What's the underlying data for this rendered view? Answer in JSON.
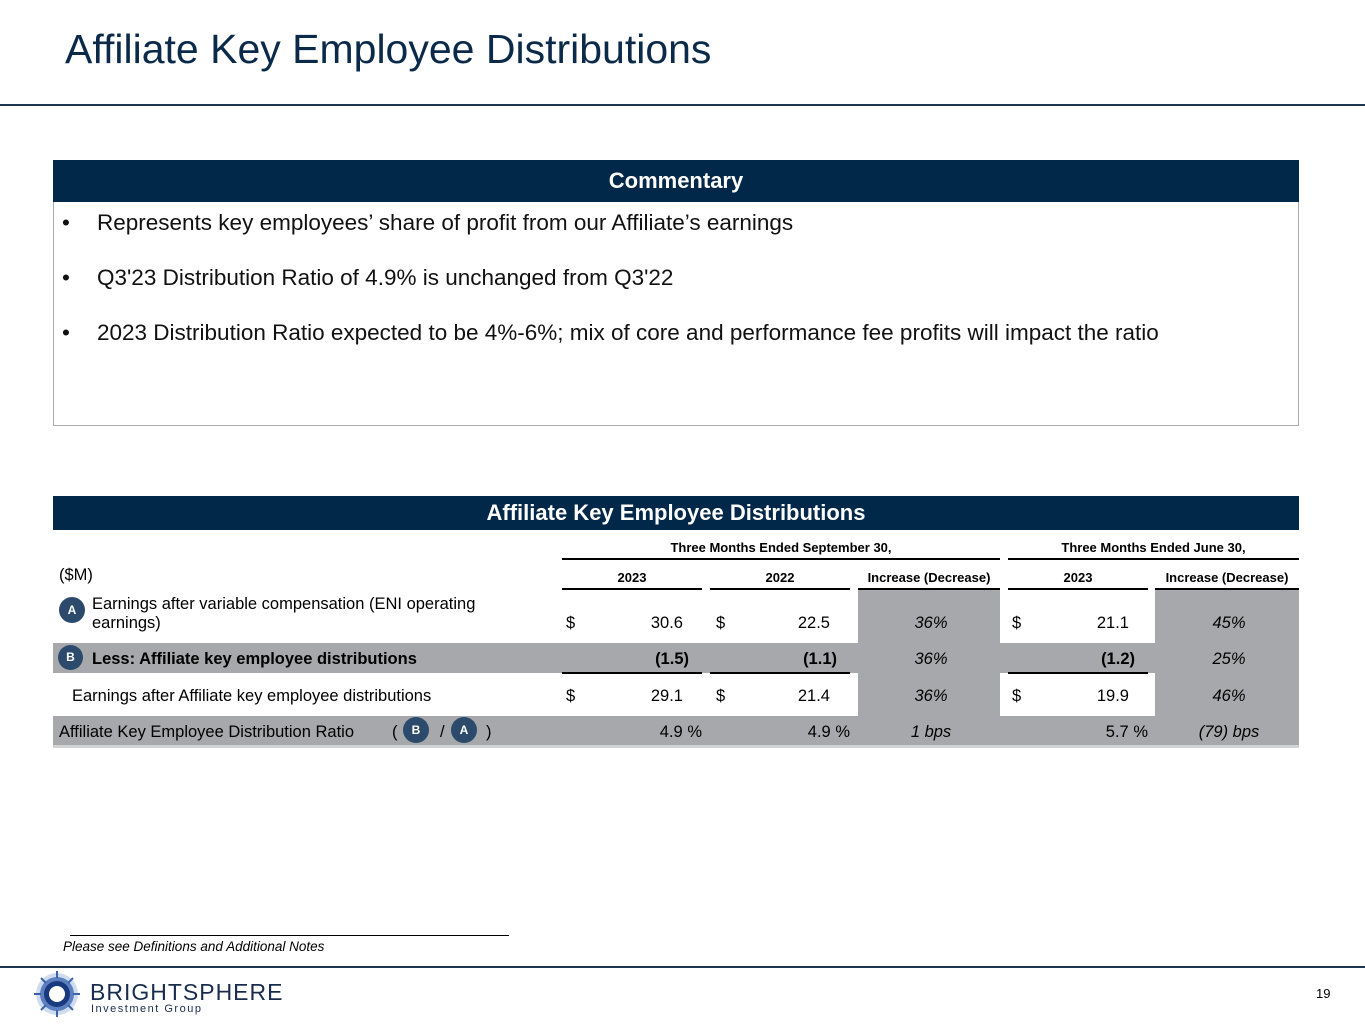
{
  "title": "Affiliate Key Employee Distributions",
  "commentary": {
    "header": "Commentary",
    "bullets": [
      "Represents key employees’ share of profit from our Affiliate’s earnings",
      "Q3'23 Distribution Ratio of 4.9% is unchanged from Q3'22",
      "2023 Distribution Ratio expected to be 4%-6%; mix of core and performance fee profits will impact the ratio"
    ],
    "bullet_char": "•"
  },
  "table": {
    "header": "Affiliate Key Employee Distributions",
    "units": "($M)",
    "period1": "Three Months Ended September 30,",
    "period2": "Three Months Ended June 30,",
    "cols": {
      "c2023": "2023",
      "c2022": "2022",
      "inc1": "Increase (Decrease)",
      "j2023": "2023",
      "inc2": "Increase (Decrease)"
    },
    "badges": {
      "a": "A",
      "b": "B"
    },
    "rows": {
      "eni": {
        "label_line1": "Earnings after variable compensation (ENI operating",
        "label_line2": "earnings)",
        "cur": "$",
        "v2023": "30.6",
        "v2022": "22.5",
        "inc1": "36%",
        "j2023": "21.1",
        "inc2": "45%"
      },
      "less": {
        "label": "Less: Affiliate key employee distributions",
        "v2023": "(1.5)",
        "v2022": "(1.1)",
        "inc1": "36%",
        "j2023": "(1.2)",
        "inc2": "25%"
      },
      "after": {
        "label": "Earnings after Affiliate key employee distributions",
        "cur": "$",
        "v2023": "29.1",
        "v2022": "21.4",
        "inc1": "36%",
        "j2023": "19.9",
        "inc2": "46%"
      },
      "ratio": {
        "label": "Affiliate Key Employee Distribution Ratio",
        "open": "(",
        "slash": "/",
        "close": ")",
        "v2023": "4.9 %",
        "v2022": "4.9 %",
        "inc1": "1 bps",
        "j2023": "5.7 %",
        "inc2": "(79) bps"
      }
    }
  },
  "footnote": "Please see Definitions and Additional Notes",
  "logo": {
    "name": "BRIGHTSPHERE",
    "sub": "Investment Group"
  },
  "page_number": "19",
  "colors": {
    "navy": "#012749",
    "gray": "#a6a8ab",
    "badge": "#2c4a6c"
  }
}
